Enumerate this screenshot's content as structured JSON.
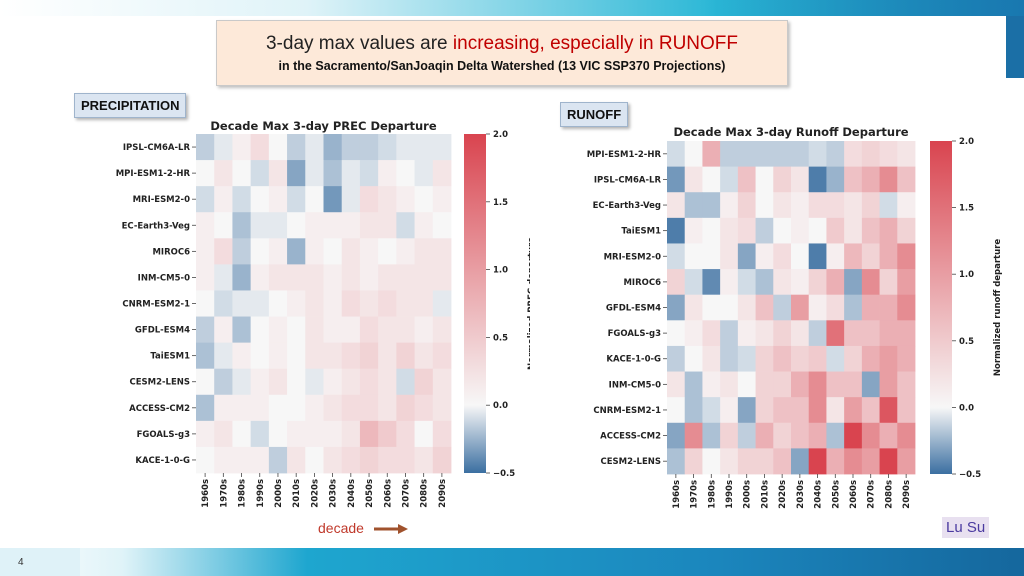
{
  "slide": {
    "title_part1": "3-day max values are ",
    "title_highlight": "increasing, especially in RUNOFF",
    "subtitle": "in the Sacramento/SanJoaqin Delta Watershed  (13 VIC SSP370 Projections)",
    "panel_left_label": "PRECIPITATION",
    "panel_right_label": "RUNOFF",
    "decade_label": "decade",
    "author": "Lu Su",
    "page_number": "4"
  },
  "colors": {
    "negative": "#3b6fa1",
    "neutral": "#f7f7f7",
    "positive": "#d9444f",
    "highlight": "#c00000"
  },
  "chart_data": [
    {
      "type": "heatmap",
      "title": "Decade Max 3-day PREC Departure",
      "colorbar_label": "Normalized PREC departure",
      "vmin": -0.5,
      "vmax": 2.0,
      "colorbar_ticks": [
        "2.0",
        "1.5",
        "1.0",
        "0.5",
        "0.0",
        "−0.5"
      ],
      "x": [
        "1960s",
        "1970s",
        "1980s",
        "1990s",
        "2000s",
        "2010s",
        "2020s",
        "2030s",
        "2040s",
        "2050s",
        "2060s",
        "2070s",
        "2080s",
        "2090s"
      ],
      "y": [
        "IPSL-CM6A-LR",
        "MPI-ESM1-2-HR",
        "MRI-ESM2-0",
        "EC-Earth3-Veg",
        "MIROC6",
        "INM-CM5-0",
        "CNRM-ESM2-1",
        "GFDL-ESM4",
        "TaiESM1",
        "CESM2-LENS",
        "ACCESS-CM2",
        "FGOALS-g3",
        "KACE-1-0-G"
      ],
      "values": [
        [
          -0.15,
          -0.05,
          0.05,
          0.15,
          0.0,
          -0.15,
          -0.05,
          -0.25,
          -0.15,
          -0.15,
          -0.1,
          -0.05,
          -0.05,
          -0.05
        ],
        [
          0.0,
          0.1,
          0.0,
          -0.1,
          0.1,
          -0.3,
          -0.05,
          -0.2,
          -0.05,
          -0.1,
          0.05,
          0.0,
          -0.05,
          0.1
        ],
        [
          -0.1,
          0.05,
          -0.1,
          0.0,
          0.05,
          -0.1,
          0.0,
          -0.35,
          -0.05,
          0.15,
          0.1,
          0.05,
          0.0,
          0.05
        ],
        [
          0.05,
          0.0,
          -0.2,
          -0.05,
          -0.05,
          0.0,
          0.05,
          0.05,
          0.05,
          0.1,
          0.1,
          -0.1,
          0.05,
          0.0
        ],
        [
          0.05,
          0.15,
          -0.15,
          0.0,
          0.05,
          -0.25,
          0.05,
          0.0,
          0.1,
          0.05,
          0.0,
          0.05,
          0.1,
          0.1
        ],
        [
          0.05,
          -0.05,
          -0.25,
          0.05,
          0.1,
          0.1,
          0.1,
          0.05,
          0.1,
          0.05,
          0.1,
          0.1,
          0.1,
          0.1
        ],
        [
          0.0,
          -0.1,
          -0.05,
          -0.05,
          0.0,
          0.05,
          0.1,
          0.05,
          0.15,
          0.1,
          0.15,
          0.1,
          0.1,
          -0.05
        ],
        [
          -0.15,
          0.05,
          -0.2,
          0.0,
          0.05,
          0.0,
          0.1,
          0.05,
          0.05,
          0.15,
          0.1,
          0.1,
          0.05,
          0.1
        ],
        [
          -0.2,
          -0.05,
          0.05,
          0.0,
          0.05,
          0.0,
          0.1,
          0.1,
          0.15,
          0.2,
          0.1,
          0.2,
          0.1,
          0.15
        ],
        [
          0.0,
          -0.15,
          -0.05,
          0.05,
          0.1,
          0.0,
          -0.05,
          0.05,
          0.1,
          0.15,
          0.1,
          -0.1,
          0.2,
          0.1
        ],
        [
          -0.2,
          0.05,
          0.05,
          0.05,
          0.0,
          0.0,
          0.05,
          0.1,
          0.15,
          0.15,
          0.1,
          0.2,
          0.15,
          0.1
        ],
        [
          0.05,
          0.1,
          0.0,
          -0.1,
          0.0,
          0.05,
          0.05,
          0.05,
          0.1,
          0.35,
          0.25,
          0.15,
          0.0,
          0.15
        ],
        [
          0.0,
          0.05,
          0.05,
          0.05,
          -0.15,
          0.1,
          0.0,
          0.1,
          0.15,
          0.2,
          0.15,
          0.15,
          0.1,
          0.2
        ]
      ]
    },
    {
      "type": "heatmap",
      "title": "Decade Max 3-day Runoff Departure",
      "colorbar_label": "Normalized runoff departure",
      "vmin": -0.5,
      "vmax": 2.0,
      "colorbar_ticks": [
        "2.0",
        "1.5",
        "1.0",
        "0.5",
        "0.0",
        "−0.5"
      ],
      "x": [
        "1960s",
        "1970s",
        "1980s",
        "1990s",
        "2000s",
        "2010s",
        "2020s",
        "2030s",
        "2040s",
        "2050s",
        "2060s",
        "2070s",
        "2080s",
        "2090s"
      ],
      "y": [
        "MPI-ESM1-2-HR",
        "IPSL-CM6A-LR",
        "EC-Earth3-Veg",
        "TaiESM1",
        "MRI-ESM2-0",
        "MIROC6",
        "GFDL-ESM4",
        "FGOALS-g3",
        "KACE-1-0-G",
        "INM-CM5-0",
        "CNRM-ESM2-1",
        "ACCESS-CM2",
        "CESM2-LENS"
      ],
      "values": [
        [
          -0.1,
          0.0,
          0.4,
          -0.15,
          -0.15,
          -0.15,
          -0.15,
          -0.15,
          -0.1,
          -0.15,
          0.15,
          0.2,
          0.15,
          0.1
        ],
        [
          -0.35,
          0.1,
          0.0,
          -0.1,
          0.3,
          0.0,
          0.2,
          0.1,
          -0.45,
          -0.25,
          0.3,
          0.4,
          0.6,
          0.3
        ],
        [
          0.1,
          -0.2,
          -0.2,
          0.05,
          0.2,
          0.0,
          0.1,
          0.05,
          0.15,
          0.15,
          0.1,
          0.2,
          -0.1,
          0.05
        ],
        [
          -0.45,
          0.05,
          0.0,
          0.1,
          0.15,
          -0.15,
          0.0,
          0.05,
          0.0,
          0.25,
          0.1,
          0.3,
          0.4,
          0.2
        ],
        [
          -0.1,
          0.0,
          0.0,
          0.1,
          -0.3,
          0.05,
          0.15,
          0.0,
          -0.45,
          0.05,
          0.35,
          0.2,
          0.4,
          0.6
        ],
        [
          0.2,
          -0.1,
          -0.4,
          0.05,
          -0.1,
          -0.2,
          0.1,
          0.05,
          0.2,
          0.4,
          -0.3,
          0.6,
          0.2,
          0.5
        ],
        [
          -0.3,
          0.1,
          0.0,
          0.0,
          0.1,
          0.3,
          -0.15,
          0.5,
          0.05,
          0.15,
          -0.2,
          0.4,
          0.4,
          0.6
        ],
        [
          0.0,
          0.05,
          0.15,
          -0.15,
          0.05,
          0.1,
          0.2,
          0.1,
          -0.15,
          0.75,
          0.3,
          0.3,
          0.4,
          0.4
        ],
        [
          -0.15,
          0.0,
          0.1,
          -0.15,
          -0.1,
          0.2,
          0.3,
          0.2,
          0.25,
          -0.1,
          0.2,
          0.4,
          0.5,
          0.4
        ],
        [
          0.1,
          -0.2,
          0.05,
          0.1,
          0.0,
          0.2,
          0.2,
          0.4,
          0.6,
          0.3,
          0.3,
          -0.3,
          0.5,
          0.3
        ],
        [
          0.0,
          -0.2,
          -0.1,
          0.05,
          -0.3,
          0.2,
          0.3,
          0.3,
          0.6,
          0.1,
          0.5,
          0.3,
          0.9,
          0.3
        ],
        [
          -0.3,
          0.6,
          -0.2,
          0.2,
          -0.15,
          0.4,
          0.2,
          0.3,
          0.4,
          -0.2,
          1.0,
          0.6,
          0.4,
          0.6
        ],
        [
          -0.2,
          0.2,
          0.0,
          0.1,
          0.2,
          0.2,
          0.3,
          -0.3,
          1.0,
          0.4,
          0.6,
          0.5,
          1.2,
          0.5
        ]
      ]
    }
  ]
}
